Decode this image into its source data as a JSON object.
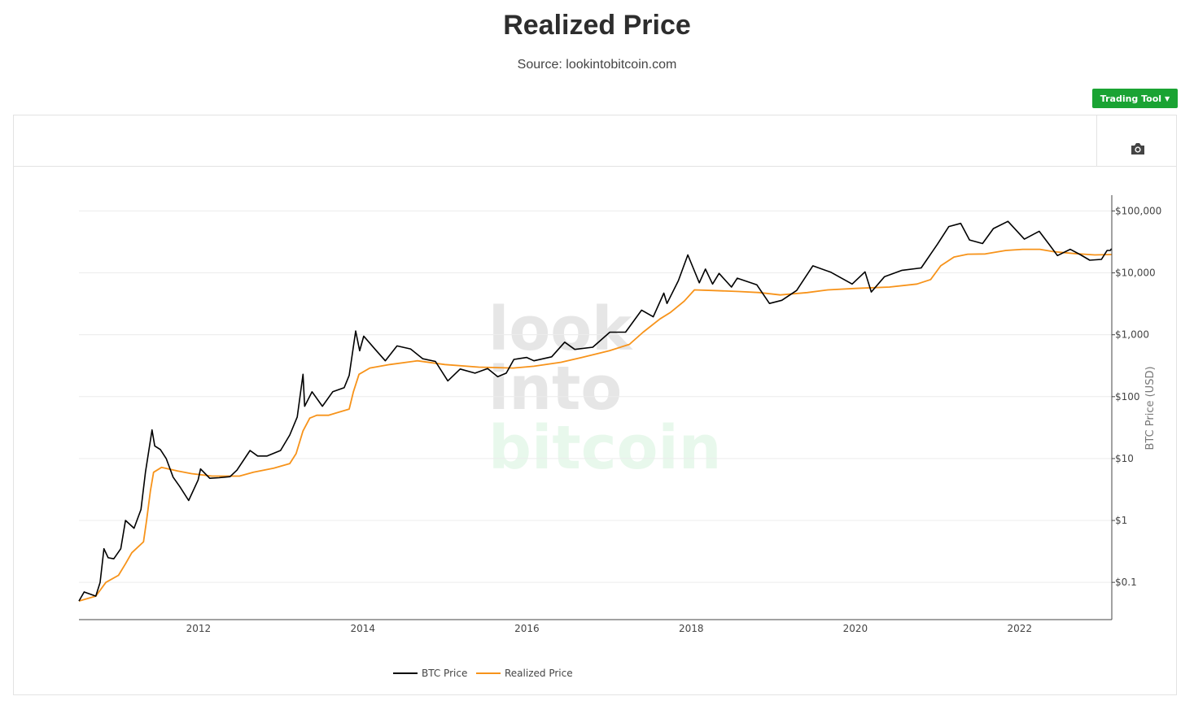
{
  "header": {
    "title": "Realized Price",
    "subtitle": "Source: lookintobitcoin.com"
  },
  "toolbar": {
    "trading_tool_label": "Trading Tool",
    "screenshot_icon": "camera-icon"
  },
  "watermark": {
    "line1": "look",
    "line2": "into",
    "line3": "bitcoin"
  },
  "colors": {
    "btc_price": "#000000",
    "realized_price": "#f7931a",
    "button_green": "#1aa333",
    "watermark_gray": "#e6e6e6",
    "watermark_green": "#e8f8ec"
  },
  "chart_data": {
    "type": "line",
    "title": "Realized Price",
    "subtitle": "Source: lookintobitcoin.com",
    "xlabel": "",
    "ylabel": "BTC Price (USD)",
    "y_scale": "log",
    "xlim": [
      "2010-07-18",
      "2023-02-15"
    ],
    "ylim": [
      0.025,
      180000
    ],
    "x_ticks": [
      "2012",
      "2014",
      "2016",
      "2018",
      "2020",
      "2022"
    ],
    "y_ticks": [
      {
        "value": 0.1,
        "label": "$0.1"
      },
      {
        "value": 1,
        "label": "$1"
      },
      {
        "value": 10,
        "label": "$10"
      },
      {
        "value": 100,
        "label": "$100"
      },
      {
        "value": 1000,
        "label": "$1,000"
      },
      {
        "value": 10000,
        "label": "$10,000"
      },
      {
        "value": 100000,
        "label": "$100,000"
      }
    ],
    "grid": "horizontal",
    "legend_position": "bottom-center",
    "series": [
      {
        "name": "BTC Price",
        "color": "#000000",
        "points": [
          [
            "2010-07-18",
            0.05
          ],
          [
            "2010-08-10",
            0.07
          ],
          [
            "2010-10-01",
            0.06
          ],
          [
            "2010-10-20",
            0.1
          ],
          [
            "2010-11-06",
            0.35
          ],
          [
            "2010-11-25",
            0.25
          ],
          [
            "2010-12-20",
            0.24
          ],
          [
            "2011-01-20",
            0.35
          ],
          [
            "2011-02-10",
            1.0
          ],
          [
            "2011-03-20",
            0.75
          ],
          [
            "2011-04-20",
            1.5
          ],
          [
            "2011-05-10",
            6.0
          ],
          [
            "2011-06-08",
            29.0
          ],
          [
            "2011-06-20",
            16.0
          ],
          [
            "2011-07-15",
            14.0
          ],
          [
            "2011-08-10",
            10.0
          ],
          [
            "2011-09-10",
            5.0
          ],
          [
            "2011-10-10",
            3.5
          ],
          [
            "2011-11-18",
            2.1
          ],
          [
            "2011-12-30",
            4.5
          ],
          [
            "2012-01-10",
            6.8
          ],
          [
            "2012-02-20",
            4.8
          ],
          [
            "2012-04-01",
            4.9
          ],
          [
            "2012-05-20",
            5.1
          ],
          [
            "2012-06-20",
            6.5
          ],
          [
            "2012-08-17",
            13.5
          ],
          [
            "2012-09-20",
            11.0
          ],
          [
            "2012-11-01",
            11.0
          ],
          [
            "2012-12-31",
            13.5
          ],
          [
            "2013-02-10",
            24.0
          ],
          [
            "2013-03-15",
            47.0
          ],
          [
            "2013-04-10",
            230.0
          ],
          [
            "2013-04-17",
            70.0
          ],
          [
            "2013-05-20",
            120.0
          ],
          [
            "2013-07-05",
            70.0
          ],
          [
            "2013-08-20",
            120.0
          ],
          [
            "2013-10-10",
            140.0
          ],
          [
            "2013-11-01",
            220.0
          ],
          [
            "2013-11-30",
            1150.0
          ],
          [
            "2013-12-18",
            550.0
          ],
          [
            "2014-01-05",
            950.0
          ],
          [
            "2014-02-25",
            580.0
          ],
          [
            "2014-04-11",
            380.0
          ],
          [
            "2014-06-02",
            660.0
          ],
          [
            "2014-08-01",
            590.0
          ],
          [
            "2014-09-25",
            410.0
          ],
          [
            "2014-11-20",
            370.0
          ],
          [
            "2015-01-14",
            180.0
          ],
          [
            "2015-03-10",
            280.0
          ],
          [
            "2015-05-15",
            240.0
          ],
          [
            "2015-07-10",
            285.0
          ],
          [
            "2015-08-24",
            210.0
          ],
          [
            "2015-10-01",
            240.0
          ],
          [
            "2015-11-04",
            400.0
          ],
          [
            "2015-12-31",
            430.0
          ],
          [
            "2016-02-01",
            380.0
          ],
          [
            "2016-04-20",
            440.0
          ],
          [
            "2016-06-17",
            760.0
          ],
          [
            "2016-08-01",
            580.0
          ],
          [
            "2016-10-20",
            630.0
          ],
          [
            "2017-01-04",
            1100.0
          ],
          [
            "2017-03-15",
            1100.0
          ],
          [
            "2017-05-25",
            2500.0
          ],
          [
            "2017-07-16",
            1950.0
          ],
          [
            "2017-09-01",
            4700.0
          ],
          [
            "2017-09-15",
            3200.0
          ],
          [
            "2017-11-05",
            7500.0
          ],
          [
            "2017-12-17",
            19500.0
          ],
          [
            "2018-02-06",
            6900.0
          ],
          [
            "2018-03-05",
            11500.0
          ],
          [
            "2018-04-06",
            6600.0
          ],
          [
            "2018-05-05",
            9800.0
          ],
          [
            "2018-06-29",
            5900.0
          ],
          [
            "2018-07-25",
            8200.0
          ],
          [
            "2018-10-20",
            6400.0
          ],
          [
            "2018-12-15",
            3200.0
          ],
          [
            "2019-02-08",
            3600.0
          ],
          [
            "2019-04-15",
            5200.0
          ],
          [
            "2019-06-26",
            13000.0
          ],
          [
            "2019-09-15",
            10200.0
          ],
          [
            "2019-12-18",
            6600.0
          ],
          [
            "2020-02-13",
            10400.0
          ],
          [
            "2020-03-12",
            4900.0
          ],
          [
            "2020-05-10",
            8700.0
          ],
          [
            "2020-07-27",
            11000.0
          ],
          [
            "2020-10-20",
            12000.0
          ],
          [
            "2020-12-31",
            29000.0
          ],
          [
            "2021-02-20",
            56000.0
          ],
          [
            "2021-04-14",
            63000.0
          ],
          [
            "2021-05-23",
            34000.0
          ],
          [
            "2021-07-20",
            29800.0
          ],
          [
            "2021-09-06",
            52000.0
          ],
          [
            "2021-11-10",
            68000.0
          ],
          [
            "2022-01-22",
            35000.0
          ],
          [
            "2022-03-29",
            47000.0
          ],
          [
            "2022-05-12",
            29000.0
          ],
          [
            "2022-06-18",
            19000.0
          ],
          [
            "2022-08-14",
            24000.0
          ],
          [
            "2022-09-30",
            19500.0
          ],
          [
            "2022-11-09",
            16000.0
          ],
          [
            "2022-12-31",
            16500.0
          ],
          [
            "2023-01-25",
            23000.0
          ],
          [
            "2023-02-08",
            23000.0
          ],
          [
            "2023-02-14",
            24500.0
          ]
        ]
      },
      {
        "name": "Realized Price",
        "color": "#f7931a",
        "points": [
          [
            "2010-07-18",
            0.05
          ],
          [
            "2010-10-01",
            0.06
          ],
          [
            "2010-11-15",
            0.1
          ],
          [
            "2011-01-10",
            0.13
          ],
          [
            "2011-02-10",
            0.2
          ],
          [
            "2011-03-10",
            0.3
          ],
          [
            "2011-05-01",
            0.45
          ],
          [
            "2011-05-15",
            1.0
          ],
          [
            "2011-06-01",
            3.0
          ],
          [
            "2011-06-15",
            6.0
          ],
          [
            "2011-07-20",
            7.2
          ],
          [
            "2011-10-01",
            6.3
          ],
          [
            "2011-12-01",
            5.7
          ],
          [
            "2012-03-01",
            5.2
          ],
          [
            "2012-07-01",
            5.2
          ],
          [
            "2012-09-01",
            6.0
          ],
          [
            "2012-12-01",
            7.0
          ],
          [
            "2013-02-10",
            8.3
          ],
          [
            "2013-03-10",
            12.0
          ],
          [
            "2013-04-10",
            28.0
          ],
          [
            "2013-05-10",
            45.0
          ],
          [
            "2013-06-10",
            50.0
          ],
          [
            "2013-08-01",
            50.0
          ],
          [
            "2013-11-01",
            63.0
          ],
          [
            "2013-11-20",
            120.0
          ],
          [
            "2013-12-15",
            230.0
          ],
          [
            "2014-02-01",
            290.0
          ],
          [
            "2014-05-01",
            330.0
          ],
          [
            "2014-09-01",
            380.0
          ],
          [
            "2015-01-01",
            330.0
          ],
          [
            "2015-06-01",
            300.0
          ],
          [
            "2015-11-01",
            290.0
          ],
          [
            "2016-02-01",
            310.0
          ],
          [
            "2016-06-01",
            360.0
          ],
          [
            "2016-09-01",
            430.0
          ],
          [
            "2017-01-01",
            550.0
          ],
          [
            "2017-04-01",
            700.0
          ],
          [
            "2017-06-01",
            1100.0
          ],
          [
            "2017-08-15",
            1800.0
          ],
          [
            "2017-10-01",
            2300.0
          ],
          [
            "2017-12-01",
            3500.0
          ],
          [
            "2018-01-15",
            5300.0
          ],
          [
            "2018-04-01",
            5200.0
          ],
          [
            "2018-08-01",
            5000.0
          ],
          [
            "2018-11-01",
            4800.0
          ],
          [
            "2019-02-01",
            4400.0
          ],
          [
            "2019-06-01",
            4800.0
          ],
          [
            "2019-09-01",
            5300.0
          ],
          [
            "2020-01-01",
            5600.0
          ],
          [
            "2020-06-01",
            5900.0
          ],
          [
            "2020-10-01",
            6600.0
          ],
          [
            "2020-12-01",
            7800.0
          ],
          [
            "2021-01-15",
            13000.0
          ],
          [
            "2021-03-15",
            18000.0
          ],
          [
            "2021-05-15",
            20000.0
          ],
          [
            "2021-08-01",
            20200.0
          ],
          [
            "2021-11-01",
            23000.0
          ],
          [
            "2022-01-15",
            24000.0
          ],
          [
            "2022-04-01",
            24000.0
          ],
          [
            "2022-06-01",
            22000.0
          ],
          [
            "2022-09-01",
            20500.0
          ],
          [
            "2022-12-01",
            19500.0
          ],
          [
            "2023-02-14",
            19800.0
          ]
        ]
      }
    ]
  }
}
